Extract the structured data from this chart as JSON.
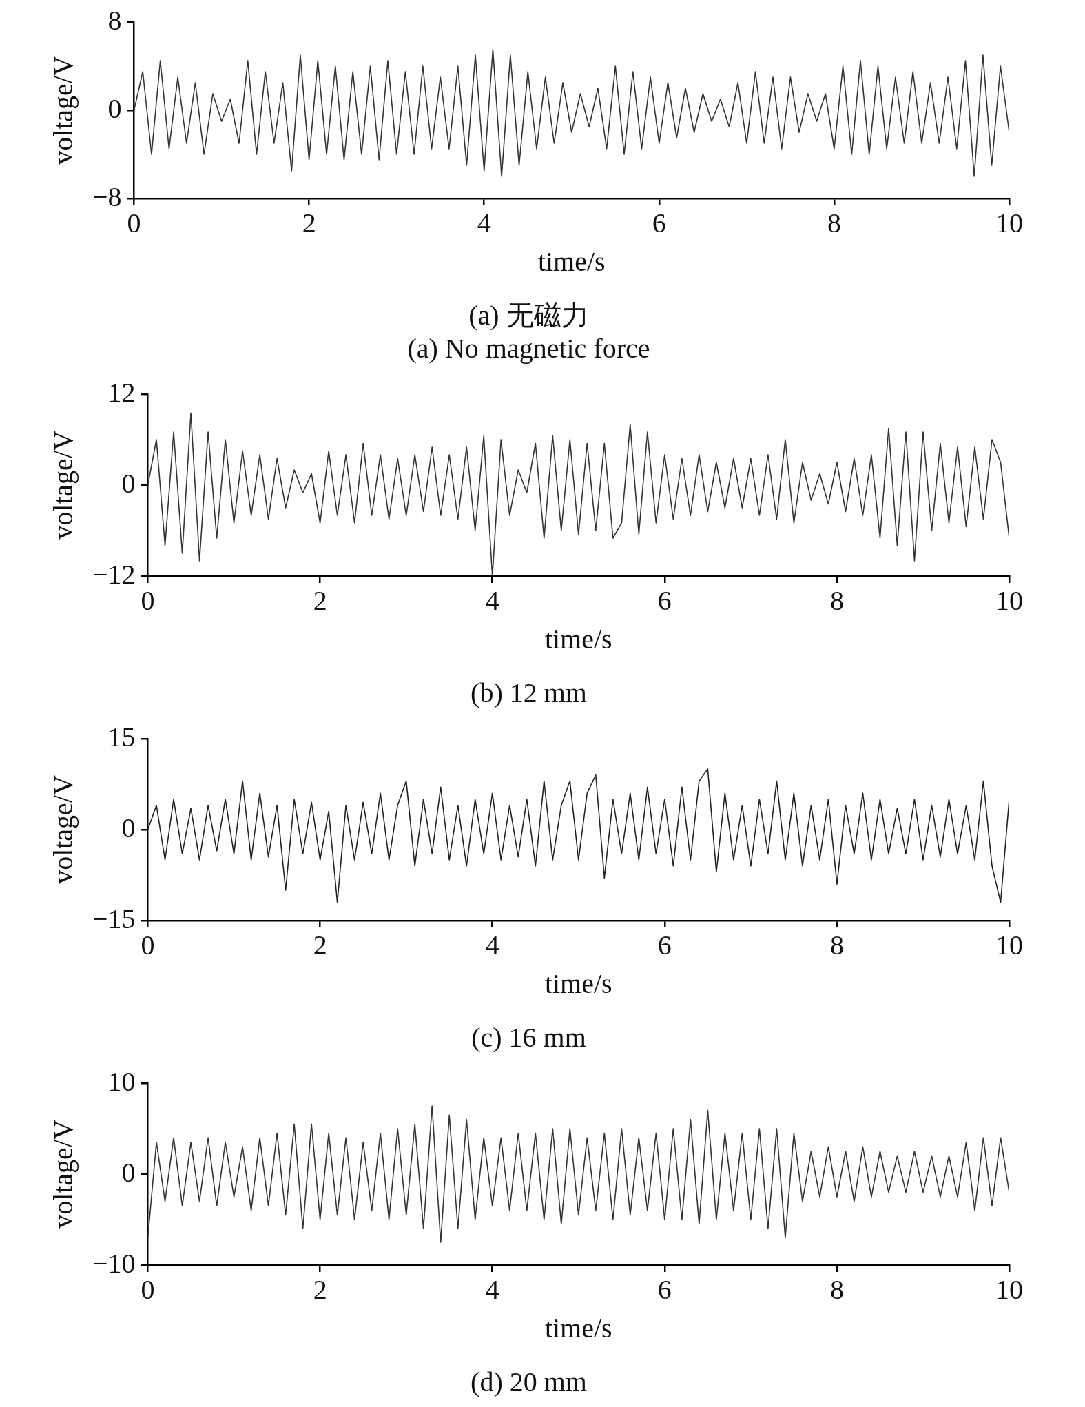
{
  "chart_data": [
    {
      "type": "line",
      "title": "(a) 无磁力",
      "subtitle": "(a) No magnetic force",
      "xlabel": "time/s",
      "ylabel": "voltage/V",
      "grid": false,
      "legend": false,
      "marker": "none",
      "xlim": [
        0,
        10
      ],
      "ylim": [
        -8,
        8
      ],
      "xticks": [
        0,
        2,
        4,
        6,
        8,
        10
      ],
      "yticks": [
        {
          "value": -8,
          "label": "−8"
        },
        0,
        8
      ],
      "x": [
        0,
        0.1,
        0.2,
        0.3,
        0.4,
        0.5,
        0.6,
        0.7,
        0.8,
        0.9,
        1,
        1.1,
        1.2,
        1.3,
        1.4,
        1.5,
        1.6,
        1.7,
        1.8,
        1.9,
        2,
        2.1,
        2.2,
        2.3,
        2.4,
        2.5,
        2.6,
        2.7,
        2.8,
        2.9,
        3,
        3.1,
        3.2,
        3.3,
        3.4,
        3.5,
        3.6,
        3.7,
        3.8,
        3.9,
        4,
        4.1,
        4.2,
        4.3,
        4.4,
        4.5,
        4.6,
        4.7,
        4.8,
        4.9,
        5,
        5.1,
        5.2,
        5.3,
        5.4,
        5.5,
        5.6,
        5.7,
        5.8,
        5.9,
        6,
        6.1,
        6.2,
        6.3,
        6.4,
        6.5,
        6.6,
        6.7,
        6.8,
        6.9,
        7,
        7.1,
        7.2,
        7.3,
        7.4,
        7.5,
        7.6,
        7.7,
        7.8,
        7.9,
        8,
        8.1,
        8.2,
        8.3,
        8.4,
        8.5,
        8.6,
        8.7,
        8.8,
        8.9,
        9,
        9.1,
        9.2,
        9.3,
        9.4,
        9.5,
        9.6,
        9.7,
        9.8,
        9.9,
        10
      ],
      "series": [
        {
          "color": "#333333",
          "values": [
            0,
            3.5,
            -4,
            4.5,
            -3.5,
            3,
            -3,
            2.5,
            -4,
            1.5,
            -1,
            1,
            -3,
            4.5,
            -4,
            3.5,
            -3,
            2.5,
            -5.5,
            5,
            -4.5,
            4.5,
            -4,
            4,
            -4.5,
            3.5,
            -4,
            4,
            -4.5,
            4.5,
            -4,
            3.5,
            -4,
            4,
            -3.5,
            3,
            -3.5,
            4,
            -5,
            5,
            -5.5,
            5.5,
            -6,
            5,
            -5,
            3.5,
            -3.5,
            3,
            -3,
            2.5,
            -2,
            1.5,
            -1.5,
            2,
            -3.5,
            4,
            -4,
            3.5,
            -3.5,
            3,
            -3,
            2.5,
            -2.5,
            2,
            -2,
            1.5,
            -1,
            1,
            -1.5,
            2.5,
            -3,
            3.5,
            -3,
            3,
            -3.5,
            3,
            -2,
            1.5,
            -1,
            1.5,
            -3.5,
            4,
            -4,
            4.5,
            -4,
            4,
            -3.5,
            3,
            -3,
            3.5,
            -3,
            2.5,
            -3,
            3,
            -3.5,
            4.5,
            -6,
            5,
            -5,
            4,
            -2
          ]
        }
      ]
    },
    {
      "type": "line",
      "title": "(b) 12 mm",
      "xlabel": "time/s",
      "ylabel": "voltage/V",
      "grid": false,
      "legend": false,
      "marker": "none",
      "xlim": [
        0,
        10
      ],
      "ylim": [
        -12,
        12
      ],
      "xticks": [
        0,
        2,
        4,
        6,
        8,
        10
      ],
      "yticks": [
        {
          "value": -12,
          "label": "−12"
        },
        0,
        12
      ],
      "x": [
        0,
        0.1,
        0.2,
        0.3,
        0.4,
        0.5,
        0.6,
        0.7,
        0.8,
        0.9,
        1,
        1.1,
        1.2,
        1.3,
        1.4,
        1.5,
        1.6,
        1.7,
        1.8,
        1.9,
        2,
        2.1,
        2.2,
        2.3,
        2.4,
        2.5,
        2.6,
        2.7,
        2.8,
        2.9,
        3,
        3.1,
        3.2,
        3.3,
        3.4,
        3.5,
        3.6,
        3.7,
        3.8,
        3.9,
        4,
        4.1,
        4.2,
        4.3,
        4.4,
        4.5,
        4.6,
        4.7,
        4.8,
        4.9,
        5,
        5.1,
        5.2,
        5.3,
        5.4,
        5.5,
        5.6,
        5.7,
        5.8,
        5.9,
        6,
        6.1,
        6.2,
        6.3,
        6.4,
        6.5,
        6.6,
        6.7,
        6.8,
        6.9,
        7,
        7.1,
        7.2,
        7.3,
        7.4,
        7.5,
        7.6,
        7.7,
        7.8,
        7.9,
        8,
        8.1,
        8.2,
        8.3,
        8.4,
        8.5,
        8.6,
        8.7,
        8.8,
        8.9,
        9,
        9.1,
        9.2,
        9.3,
        9.4,
        9.5,
        9.6,
        9.7,
        9.8,
        9.9,
        10
      ],
      "series": [
        {
          "color": "#333333",
          "values": [
            0,
            6,
            -8,
            7,
            -9,
            9.5,
            -10,
            7,
            -7,
            6,
            -5,
            4.5,
            -4,
            4,
            -4.5,
            3.5,
            -3,
            2,
            -1,
            1.5,
            -5,
            4.5,
            -4,
            4,
            -5,
            5.5,
            -4,
            4,
            -4.5,
            3.5,
            -4,
            4,
            -3.5,
            5,
            -4,
            4,
            -4.5,
            5,
            -6,
            6.5,
            -12,
            6,
            -4,
            2,
            -1,
            5.5,
            -7,
            6.5,
            -6,
            6,
            -6.5,
            5.5,
            -6,
            5.5,
            -7,
            -5,
            8,
            -6.5,
            7,
            -5,
            4,
            -4.5,
            3.5,
            -4,
            4,
            -3.5,
            3,
            -3,
            3.5,
            -3,
            3.5,
            -4,
            4,
            -4.5,
            6,
            -5,
            3,
            -2,
            1.5,
            -2.5,
            3,
            -3.5,
            3.5,
            -4,
            4,
            -7,
            7.5,
            -8,
            7,
            -10,
            7,
            -6,
            5.5,
            -5,
            5,
            -5.5,
            5,
            -4.5,
            6,
            3,
            -7
          ]
        }
      ]
    },
    {
      "type": "line",
      "title": "(c) 16 mm",
      "xlabel": "time/s",
      "ylabel": "voltage/V",
      "grid": false,
      "legend": false,
      "marker": "none",
      "xlim": [
        0,
        10
      ],
      "ylim": [
        -15,
        15
      ],
      "xticks": [
        0,
        2,
        4,
        6,
        8,
        10
      ],
      "yticks": [
        {
          "value": -15,
          "label": "−15"
        },
        0,
        15
      ],
      "x": [
        0,
        0.1,
        0.2,
        0.3,
        0.4,
        0.5,
        0.6,
        0.7,
        0.8,
        0.9,
        1,
        1.1,
        1.2,
        1.3,
        1.4,
        1.5,
        1.6,
        1.7,
        1.8,
        1.9,
        2,
        2.1,
        2.2,
        2.3,
        2.4,
        2.5,
        2.6,
        2.7,
        2.8,
        2.9,
        3,
        3.1,
        3.2,
        3.3,
        3.4,
        3.5,
        3.6,
        3.7,
        3.8,
        3.9,
        4,
        4.1,
        4.2,
        4.3,
        4.4,
        4.5,
        4.6,
        4.7,
        4.8,
        4.9,
        5,
        5.1,
        5.2,
        5.3,
        5.4,
        5.5,
        5.6,
        5.7,
        5.8,
        5.9,
        6,
        6.1,
        6.2,
        6.3,
        6.4,
        6.5,
        6.6,
        6.7,
        6.8,
        6.9,
        7,
        7.1,
        7.2,
        7.3,
        7.4,
        7.5,
        7.6,
        7.7,
        7.8,
        7.9,
        8,
        8.1,
        8.2,
        8.3,
        8.4,
        8.5,
        8.6,
        8.7,
        8.8,
        8.9,
        9,
        9.1,
        9.2,
        9.3,
        9.4,
        9.5,
        9.6,
        9.7,
        9.8,
        9.9,
        10
      ],
      "series": [
        {
          "color": "#222222",
          "values": [
            0,
            4,
            -5,
            5,
            -4,
            3.5,
            -5,
            4,
            -3.5,
            5,
            -4,
            8,
            -5,
            6,
            -4.5,
            4,
            -10,
            5,
            -4,
            4.5,
            -5,
            3,
            -12,
            4,
            -5,
            4.5,
            -4,
            6,
            -5,
            4,
            8,
            -6,
            5,
            -4,
            7,
            -5,
            4,
            -6,
            5,
            -4,
            6,
            -5,
            4,
            -4.5,
            5,
            -6,
            8,
            -5,
            4,
            8,
            -5,
            6,
            9,
            -8,
            5,
            -4,
            6,
            -5,
            7,
            -4,
            5,
            -6,
            7,
            -5,
            8,
            10,
            -7,
            6,
            -5,
            4,
            -6,
            5,
            -4,
            8,
            -5,
            6,
            -6,
            4,
            -5,
            5,
            -9,
            4,
            -4,
            6,
            -5,
            5,
            -4,
            3.5,
            -4,
            5,
            -5,
            4,
            -4.5,
            5,
            -4,
            4,
            -5,
            8,
            -6,
            -12,
            5
          ]
        }
      ]
    },
    {
      "type": "line",
      "title": "(d) 20 mm",
      "xlabel": "time/s",
      "ylabel": "voltage/V",
      "grid": false,
      "legend": false,
      "marker": "none",
      "xlim": [
        0,
        10
      ],
      "ylim": [
        -10,
        10
      ],
      "xticks": [
        0,
        2,
        4,
        6,
        8,
        10
      ],
      "yticks": [
        {
          "value": -10,
          "label": "−10"
        },
        0,
        10
      ],
      "x": [
        0,
        0.1,
        0.2,
        0.3,
        0.4,
        0.5,
        0.6,
        0.7,
        0.8,
        0.9,
        1,
        1.1,
        1.2,
        1.3,
        1.4,
        1.5,
        1.6,
        1.7,
        1.8,
        1.9,
        2,
        2.1,
        2.2,
        2.3,
        2.4,
        2.5,
        2.6,
        2.7,
        2.8,
        2.9,
        3,
        3.1,
        3.2,
        3.3,
        3.4,
        3.5,
        3.6,
        3.7,
        3.8,
        3.9,
        4,
        4.1,
        4.2,
        4.3,
        4.4,
        4.5,
        4.6,
        4.7,
        4.8,
        4.9,
        5,
        5.1,
        5.2,
        5.3,
        5.4,
        5.5,
        5.6,
        5.7,
        5.8,
        5.9,
        6,
        6.1,
        6.2,
        6.3,
        6.4,
        6.5,
        6.6,
        6.7,
        6.8,
        6.9,
        7,
        7.1,
        7.2,
        7.3,
        7.4,
        7.5,
        7.6,
        7.7,
        7.8,
        7.9,
        8,
        8.1,
        8.2,
        8.3,
        8.4,
        8.5,
        8.6,
        8.7,
        8.8,
        8.9,
        9,
        9.1,
        9.2,
        9.3,
        9.4,
        9.5,
        9.6,
        9.7,
        9.8,
        9.9,
        10
      ],
      "series": [
        {
          "color": "#333333",
          "values": [
            -7,
            3.5,
            -3,
            4,
            -3.5,
            3.5,
            -3,
            4,
            -3.5,
            3.5,
            -2.5,
            3,
            -4,
            4,
            -3.5,
            4.5,
            -4.5,
            5.5,
            -6,
            5.5,
            -5,
            4.5,
            -4.5,
            4,
            -5,
            3.5,
            -4,
            4.5,
            -5,
            5,
            -4.5,
            5.5,
            -6,
            7.5,
            -7.5,
            6.5,
            -6,
            6,
            -5,
            4,
            -3.5,
            4,
            -4,
            4.5,
            -4,
            4.5,
            -5,
            5,
            -5.5,
            5,
            -4.5,
            4,
            -4,
            4.5,
            -5,
            5,
            -4.5,
            4,
            -4,
            4.5,
            -5,
            5,
            -5,
            6,
            -5.5,
            7,
            -5,
            4.5,
            -4,
            4.5,
            -5,
            5,
            -6,
            5,
            -7,
            4.5,
            -3,
            2.5,
            -2.5,
            3,
            -2.5,
            2.5,
            -3,
            3,
            -2.5,
            2.5,
            -2,
            2,
            -2,
            2.5,
            -2,
            2,
            -2.5,
            2,
            -2.5,
            3.5,
            -4,
            4,
            -3.5,
            4,
            -2
          ]
        }
      ]
    }
  ]
}
